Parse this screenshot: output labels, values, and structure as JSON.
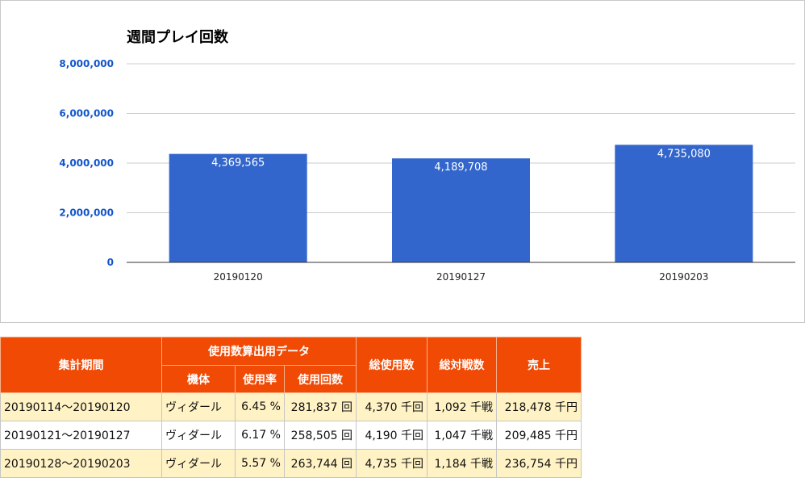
{
  "chart_data": {
    "type": "bar",
    "title": "週間プレイ回数",
    "categories": [
      "20190120",
      "20190127",
      "20190203"
    ],
    "values": [
      4369565,
      4189708,
      4735080
    ],
    "value_labels": [
      "4,369,565",
      "4,189,708",
      "4,735,080"
    ],
    "yticks": [
      0,
      2000000,
      4000000,
      6000000,
      8000000
    ],
    "ytick_labels": [
      "0",
      "2,000,000",
      "4,000,000",
      "6,000,000",
      "8,000,000"
    ],
    "ylim": [
      0,
      8000000
    ],
    "grid": true,
    "bar_color": "#3366cc",
    "tick_color": "#1155cc"
  },
  "table": {
    "header_color": "#f04a05",
    "row_color_odd": "#fff2c4",
    "headers": {
      "period": "集計期間",
      "usage_data_group": "使用数算出用データ",
      "model": "機体",
      "usage_rate": "使用率",
      "usage_count": "使用回数",
      "total_usage": "総使用数",
      "total_battles": "総対戦数",
      "sales": "売上"
    },
    "rows": [
      {
        "period": "20190114～20190120",
        "model": "ヴィダール",
        "usage_rate": "6.45 %",
        "usage_count": "281,837 回",
        "total_usage": "4,370 千回",
        "total_battles": "1,092 千戦",
        "sales": "218,478 千円"
      },
      {
        "period": "20190121～20190127",
        "model": "ヴィダール",
        "usage_rate": "6.17 %",
        "usage_count": "258,505 回",
        "total_usage": "4,190 千回",
        "total_battles": "1,047 千戦",
        "sales": "209,485 千円"
      },
      {
        "period": "20190128～20190203",
        "model": "ヴィダール",
        "usage_rate": "5.57 %",
        "usage_count": "263,744 回",
        "total_usage": "4,735 千回",
        "total_battles": "1,184 千戦",
        "sales": "236,754 千円"
      }
    ]
  }
}
